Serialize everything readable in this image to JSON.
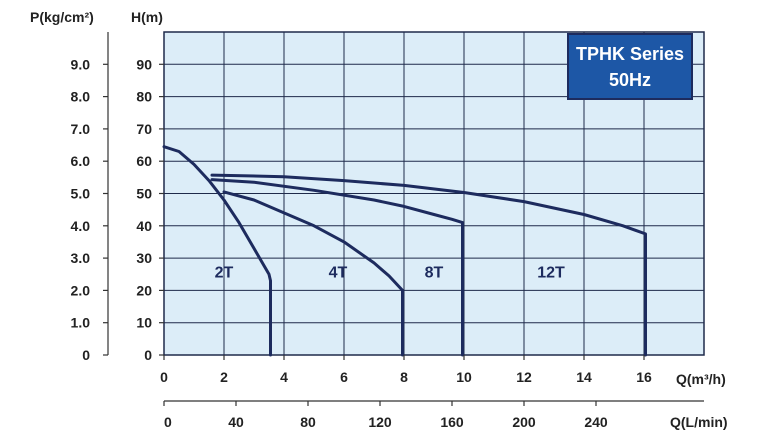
{
  "colors": {
    "plot_bg": "#dcedf8",
    "grid": "#1e2a4a",
    "curve": "#1d2b5e",
    "badge_bg": "#1d57a6",
    "badge_border": "#1d2b5e",
    "badge_text": "#ffffff"
  },
  "chart_data": {
    "type": "line",
    "title_lines": [
      "TPHK Series",
      "50Hz"
    ],
    "y_left_label": "P(kg/cm²)",
    "y_left_ticks": [
      "0",
      "1.0",
      "2.0",
      "3.0",
      "4.0",
      "5.0",
      "6.0",
      "7.0",
      "8.0",
      "9.0"
    ],
    "y_label": "H(m)",
    "y_ticks": [
      "0",
      "10",
      "20",
      "30",
      "40",
      "50",
      "60",
      "70",
      "80",
      "90"
    ],
    "ylim": [
      0,
      100
    ],
    "x_label": "Q(m³/h)",
    "x_ticks": [
      "0",
      "2",
      "4",
      "6",
      "8",
      "10",
      "12",
      "14",
      "16"
    ],
    "xlim": [
      0,
      18
    ],
    "x2_label": "Q(L/min)",
    "x2_ticks": [
      {
        "value": 0,
        "label": "0"
      },
      {
        "value": 40,
        "label": "40"
      },
      {
        "value": 80,
        "label": "80"
      },
      {
        "value": 120,
        "label": "120"
      },
      {
        "value": 160,
        "label": "160"
      },
      {
        "value": 200,
        "label": "200"
      },
      {
        "value": 240,
        "label": "240"
      }
    ],
    "x2_max": 300,
    "grid": true,
    "series": [
      {
        "name": "2T",
        "label_at": [
          2.0,
          24
        ],
        "x": [
          0,
          0.5,
          1.0,
          1.5,
          2.0,
          2.5,
          3.0,
          3.5,
          3.55,
          3.55
        ],
        "y": [
          64.5,
          63,
          59,
          54,
          48,
          41,
          33,
          25,
          23,
          0
        ]
      },
      {
        "name": "4T",
        "label_at": [
          5.8,
          24
        ],
        "x": [
          2.0,
          3.0,
          4.0,
          5.0,
          6.0,
          7.0,
          7.5,
          7.95,
          7.95
        ],
        "y": [
          50.5,
          48,
          44,
          40,
          35,
          28.5,
          24.5,
          20,
          0
        ]
      },
      {
        "name": "8T",
        "label_at": [
          9.0,
          24
        ],
        "x": [
          1.6,
          3.0,
          5.0,
          7.0,
          8.0,
          9.0,
          9.6,
          9.95,
          9.95
        ],
        "y": [
          54.3,
          53.5,
          51,
          48,
          46,
          43.5,
          42,
          41,
          0
        ]
      },
      {
        "name": "12T",
        "label_at": [
          12.9,
          24
        ],
        "x": [
          1.6,
          4.0,
          6.0,
          8.0,
          10.0,
          12.0,
          14.0,
          15.3,
          16.05,
          16.05
        ],
        "y": [
          55.7,
          55.2,
          54,
          52.5,
          50.3,
          47.5,
          43.5,
          40,
          37.5,
          0
        ]
      }
    ]
  }
}
